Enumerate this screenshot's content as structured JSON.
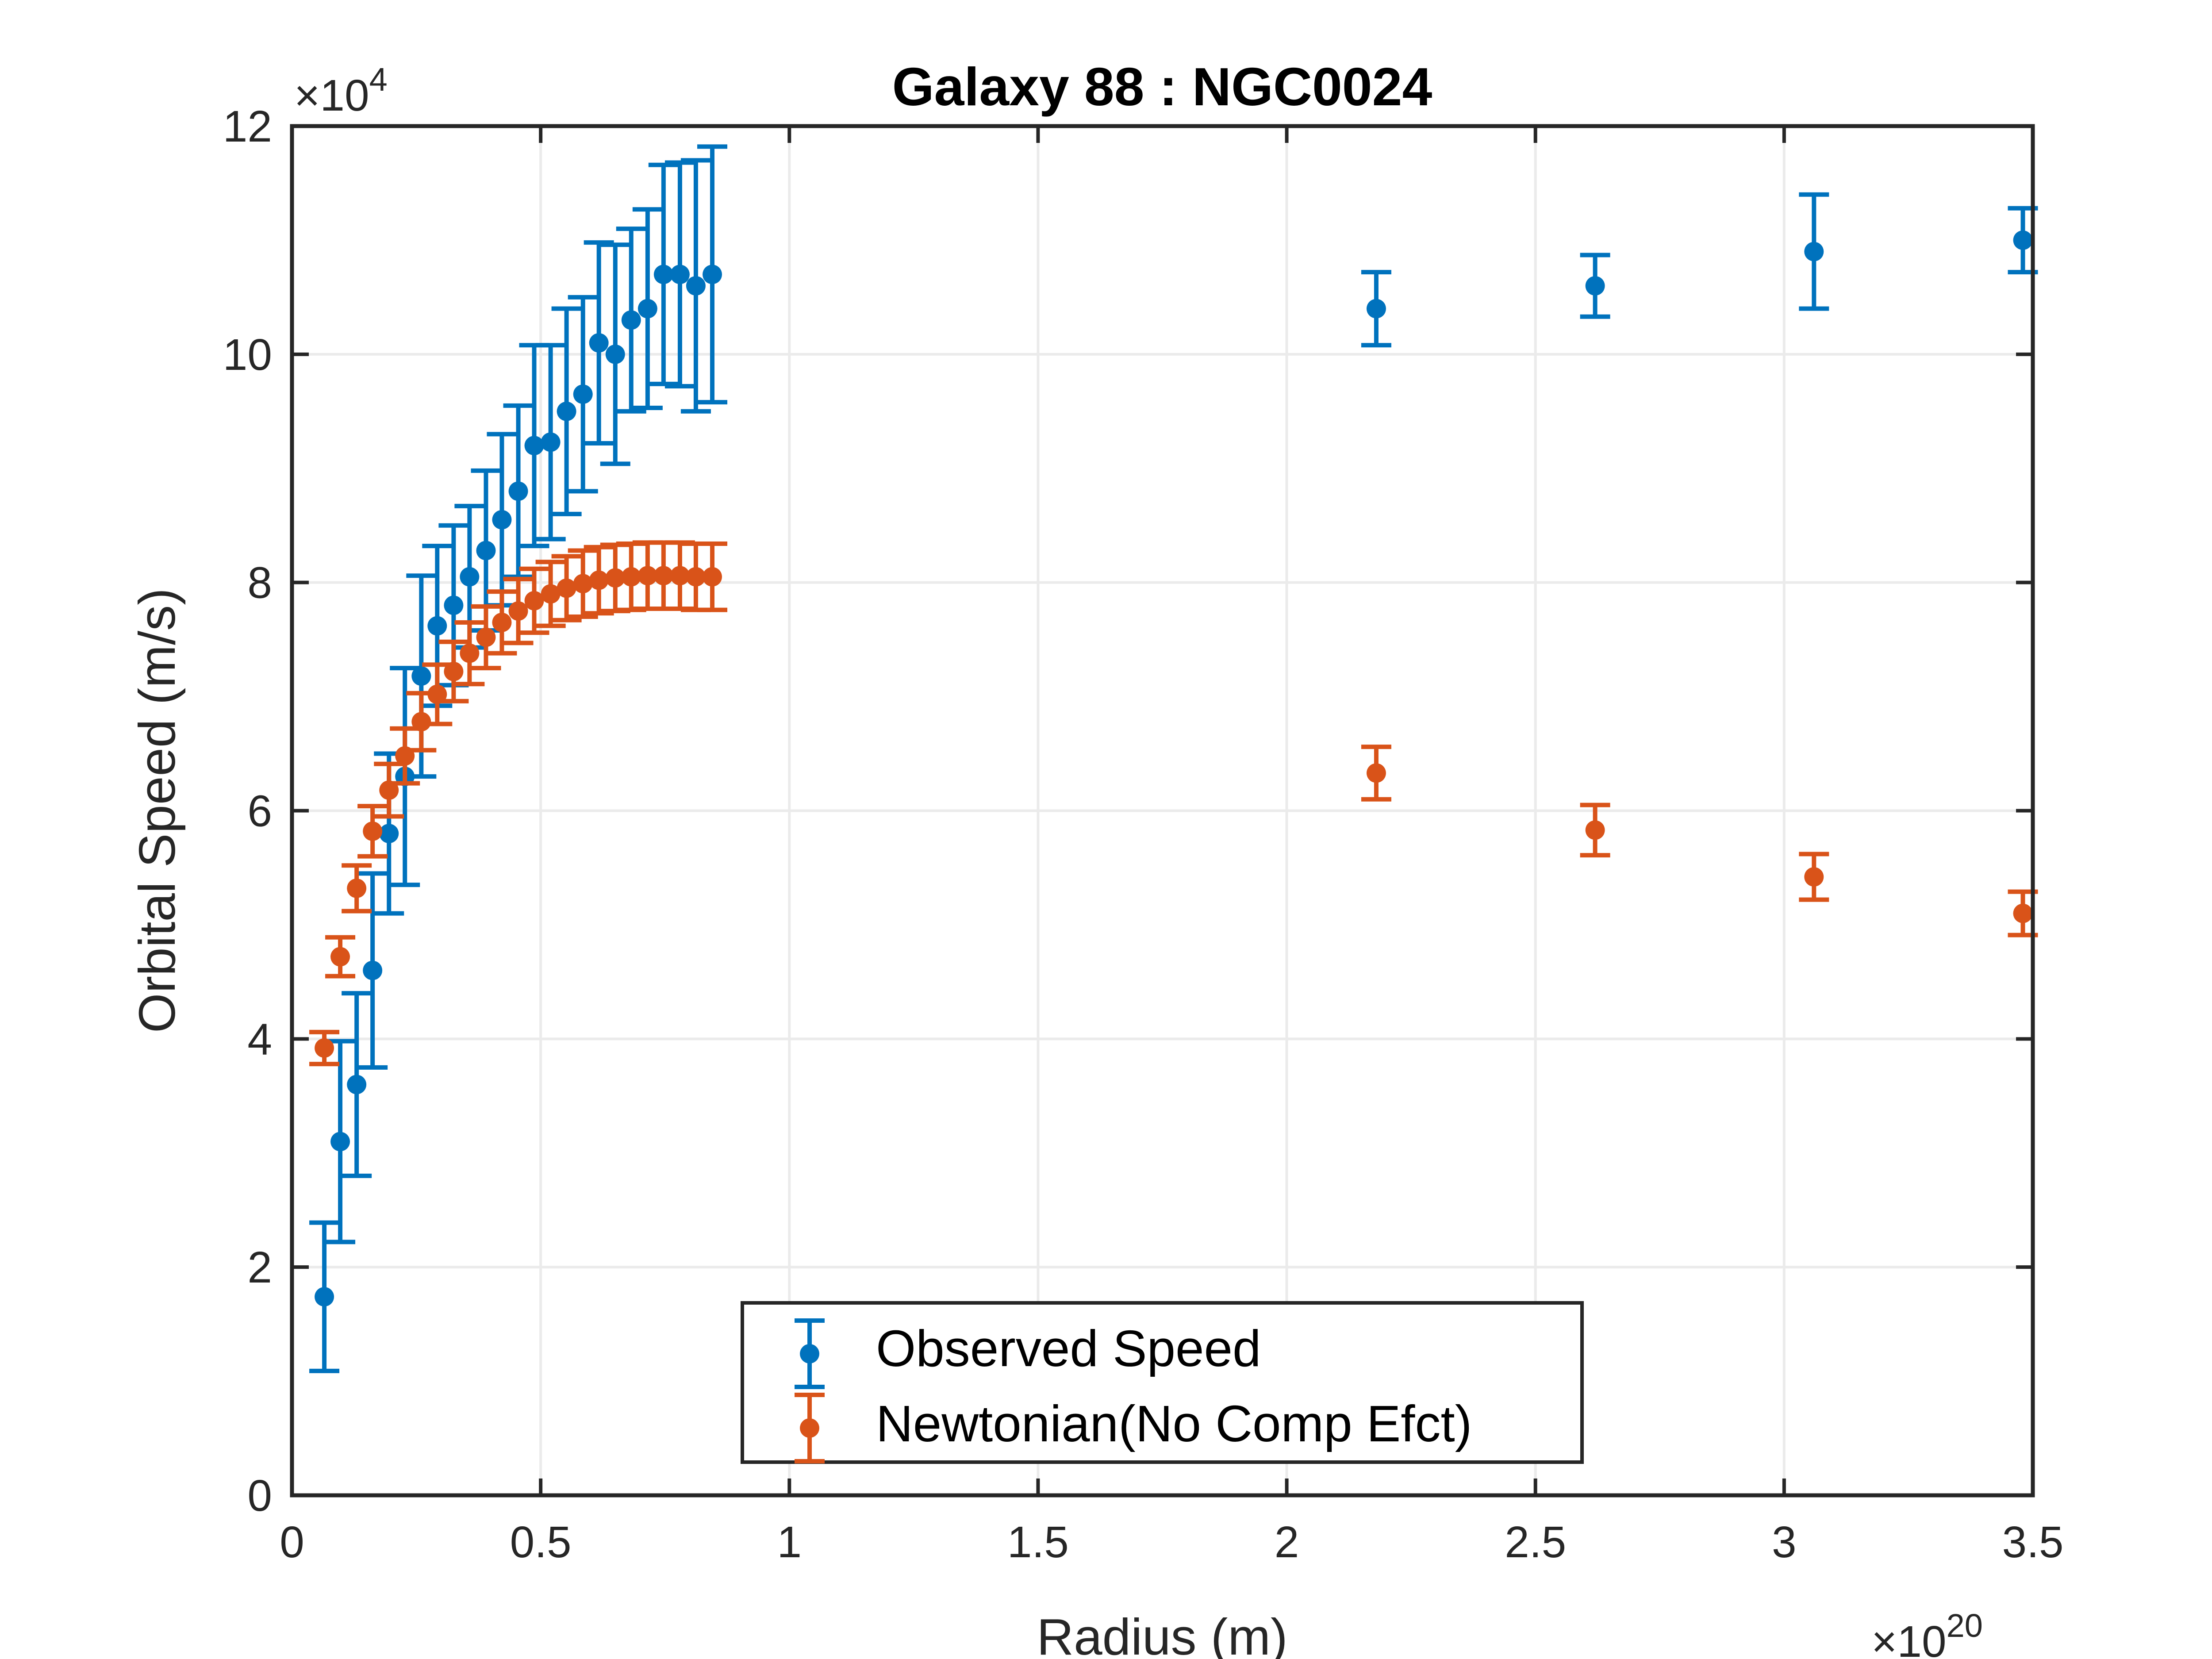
{
  "chart_data": {
    "type": "scatter",
    "title": "Galaxy 88 : NGC0024",
    "xlabel": "Radius (m)",
    "ylabel": "Orbital Speed (m/s)",
    "x_multiplier": {
      "base": "×10",
      "exponent": "20"
    },
    "y_multiplier": {
      "base": "×10",
      "exponent": "4"
    },
    "xlim": [
      0,
      3.5
    ],
    "ylim": [
      0,
      12
    ],
    "xticks": [
      0,
      0.5,
      1,
      1.5,
      2,
      2.5,
      3,
      3.5
    ],
    "xtick_labels": [
      "0",
      "0.5",
      "1",
      "1.5",
      "2",
      "2.5",
      "3",
      "3.5"
    ],
    "yticks": [
      0,
      2,
      4,
      6,
      8,
      10,
      12
    ],
    "ytick_labels": [
      "0",
      "2",
      "4",
      "6",
      "8",
      "10",
      "12"
    ],
    "grid": true,
    "legend_position": "bottom-center",
    "series": [
      {
        "name": "Observed Speed",
        "color": "#0072BD",
        "x": [
          0.065,
          0.097,
          0.13,
          0.162,
          0.195,
          0.227,
          0.26,
          0.292,
          0.325,
          0.357,
          0.39,
          0.422,
          0.455,
          0.487,
          0.52,
          0.552,
          0.585,
          0.617,
          0.65,
          0.682,
          0.715,
          0.747,
          0.78,
          0.812,
          0.845,
          2.18,
          2.62,
          3.06,
          3.48
        ],
        "y": [
          1.74,
          3.1,
          3.6,
          4.6,
          5.8,
          6.3,
          7.18,
          7.62,
          7.8,
          8.05,
          8.28,
          8.55,
          8.8,
          9.2,
          9.23,
          9.5,
          9.65,
          10.1,
          10.0,
          10.3,
          10.4,
          10.7,
          10.7,
          10.6,
          10.7,
          10.4,
          10.6,
          10.9,
          11.0
        ],
        "err": [
          0.65,
          0.88,
          0.8,
          0.85,
          0.7,
          0.95,
          0.88,
          0.7,
          0.7,
          0.62,
          0.7,
          0.75,
          0.75,
          0.88,
          0.85,
          0.9,
          0.85,
          0.88,
          0.96,
          0.8,
          0.87,
          0.96,
          0.98,
          1.1,
          1.12,
          0.32,
          0.27,
          0.5,
          0.28
        ]
      },
      {
        "name": "Newtonian(No Comp Efct)",
        "color": "#D95319",
        "x": [
          0.065,
          0.097,
          0.13,
          0.162,
          0.195,
          0.227,
          0.26,
          0.292,
          0.325,
          0.357,
          0.39,
          0.422,
          0.455,
          0.487,
          0.52,
          0.552,
          0.585,
          0.617,
          0.65,
          0.682,
          0.715,
          0.747,
          0.78,
          0.812,
          0.845,
          2.18,
          2.62,
          3.06,
          3.48
        ],
        "y": [
          3.92,
          4.72,
          5.32,
          5.82,
          6.18,
          6.48,
          6.78,
          7.02,
          7.22,
          7.38,
          7.52,
          7.65,
          7.75,
          7.84,
          7.9,
          7.95,
          7.99,
          8.02,
          8.04,
          8.05,
          8.06,
          8.06,
          8.06,
          8.05,
          8.05,
          6.33,
          5.83,
          5.42,
          5.1
        ],
        "err": [
          0.14,
          0.17,
          0.2,
          0.22,
          0.23,
          0.24,
          0.25,
          0.26,
          0.26,
          0.27,
          0.27,
          0.27,
          0.28,
          0.28,
          0.28,
          0.28,
          0.29,
          0.29,
          0.29,
          0.29,
          0.29,
          0.29,
          0.29,
          0.29,
          0.29,
          0.23,
          0.22,
          0.2,
          0.19
        ]
      }
    ]
  }
}
